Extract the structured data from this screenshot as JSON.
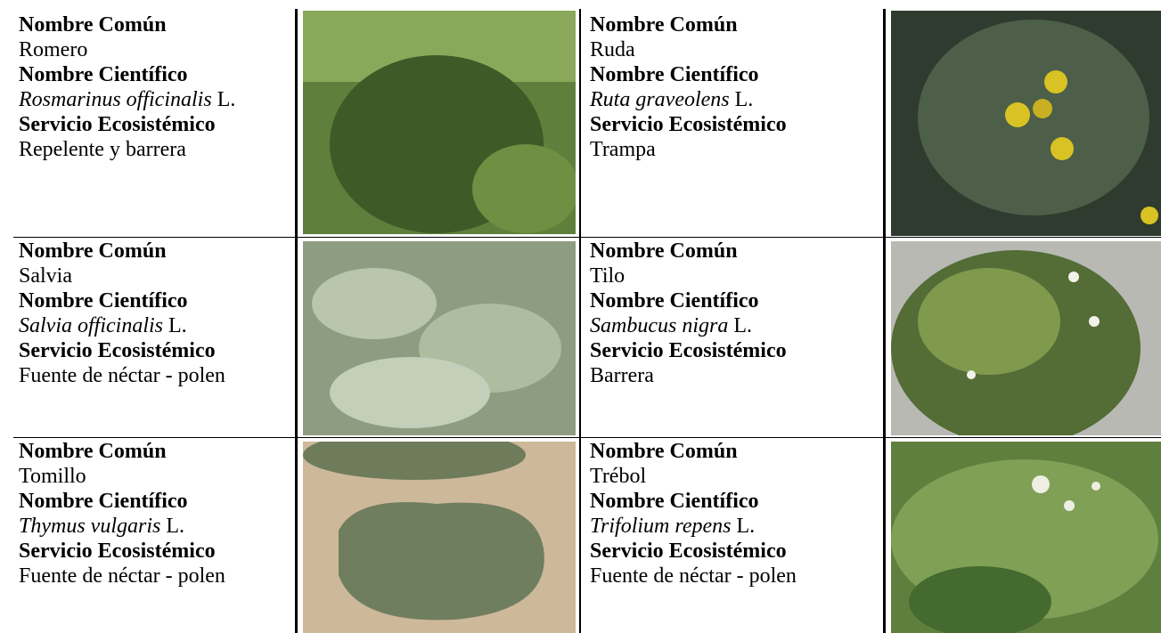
{
  "table": {
    "rows": [
      [
        {
          "common_label": "Nombre Común",
          "common": "Romero",
          "scientific_label": "Nombre Científico",
          "scientific": "Rosmarinus officinalis",
          "authority": "L.",
          "service_label": "Servicio Ecosistémico",
          "service": "Repelente y barrera"
        },
        {
          "common_label": "Nombre Común",
          "common": "Ruda",
          "scientific_label": "Nombre Científico",
          "scientific": "Ruta graveolens",
          "authority": "L.",
          "service_label": "Servicio Ecosistémico",
          "service": "Trampa"
        }
      ],
      [
        {
          "common_label": "Nombre Común",
          "common": "Salvia",
          "scientific_label": "Nombre Científico",
          "scientific": "Salvia officinalis",
          "authority": "L.",
          "service_label": "Servicio Ecosistémico",
          "service": "Fuente de néctar - polen"
        },
        {
          "common_label": "Nombre Común",
          "common": "Tilo",
          "scientific_label": "Nombre Científico",
          "scientific": "Sambucus nigra",
          "authority": "L.",
          "service_label": "Servicio Ecosistémico",
          "service": "Barrera"
        }
      ],
      [
        {
          "common_label": "Nombre Común",
          "common": "Tomillo",
          "scientific_label": "Nombre Científico",
          "scientific": "Thymus vulgaris",
          "authority": "L.",
          "service_label": "Servicio Ecosistémico",
          "service": "Fuente de néctar - polen"
        },
        {
          "common_label": "Nombre Común",
          "common": "Trébol",
          "scientific_label": "Nombre Científico",
          "scientific": "Trifolium repens",
          "authority": "L.",
          "service_label": "Servicio Ecosistémico",
          "service": "Fuente de néctar - polen"
        }
      ]
    ]
  }
}
